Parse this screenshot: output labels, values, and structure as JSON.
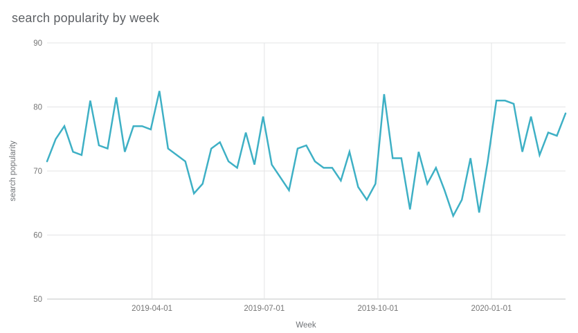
{
  "chart_data": {
    "type": "line",
    "title": "search popularity by week",
    "xlabel": "Week",
    "ylabel": "search popularity",
    "ylim": [
      50,
      90
    ],
    "y_ticks": [
      50,
      60,
      70,
      80,
      90
    ],
    "x_ticks": [
      {
        "label": "2019-04-01",
        "pos": 0.2024
      },
      {
        "label": "2019-07-01",
        "pos": 0.419
      },
      {
        "label": "2019-10-01",
        "pos": 0.6381
      },
      {
        "label": "2020-01-01",
        "pos": 0.8571
      }
    ],
    "series": [
      {
        "name": "search popularity",
        "values": [
          71.5,
          75,
          77,
          73,
          72.5,
          81,
          74,
          73.5,
          81.5,
          73,
          77,
          77,
          76.5,
          82.5,
          73.5,
          72.5,
          71.5,
          66.5,
          68,
          73.5,
          74.5,
          71.5,
          70.5,
          76,
          71,
          78.5,
          71,
          69,
          67,
          73.5,
          74,
          71.5,
          70.5,
          70.5,
          68.5,
          73,
          67.5,
          65.5,
          68,
          82,
          72,
          72,
          64,
          73,
          68,
          70.5,
          67,
          63,
          65.5,
          72,
          63.5,
          71.5,
          81,
          81,
          80.5,
          73,
          78.5,
          72.5,
          76,
          75.5,
          79
        ]
      }
    ],
    "grid": true,
    "legend": "none",
    "line_color": "#3eb0c5",
    "grid_color": "#e3e4e5",
    "baseline_color": "#c2c4c6",
    "tick_text_color": "#757575",
    "title_color": "#5d6064"
  }
}
